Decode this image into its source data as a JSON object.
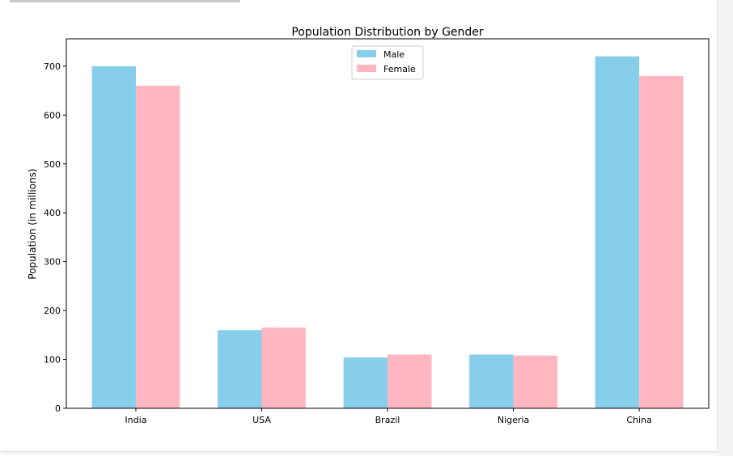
{
  "chart_data": {
    "type": "bar",
    "title": "Population Distribution by Gender",
    "xlabel": "",
    "ylabel": "Population (in millions)",
    "categories": [
      "India",
      "USA",
      "Brazil",
      "Nigeria",
      "China"
    ],
    "series": [
      {
        "name": "Male",
        "color": "#87CEEB",
        "values": [
          700,
          160,
          104,
          110,
          720
        ]
      },
      {
        "name": "Female",
        "color": "#FFB6C1",
        "values": [
          660,
          165,
          110,
          108,
          680
        ]
      }
    ],
    "ylim": [
      0,
      756
    ],
    "yticks": [
      0,
      100,
      200,
      300,
      400,
      500,
      600,
      700
    ],
    "grid": false,
    "legend": "upper-center"
  }
}
